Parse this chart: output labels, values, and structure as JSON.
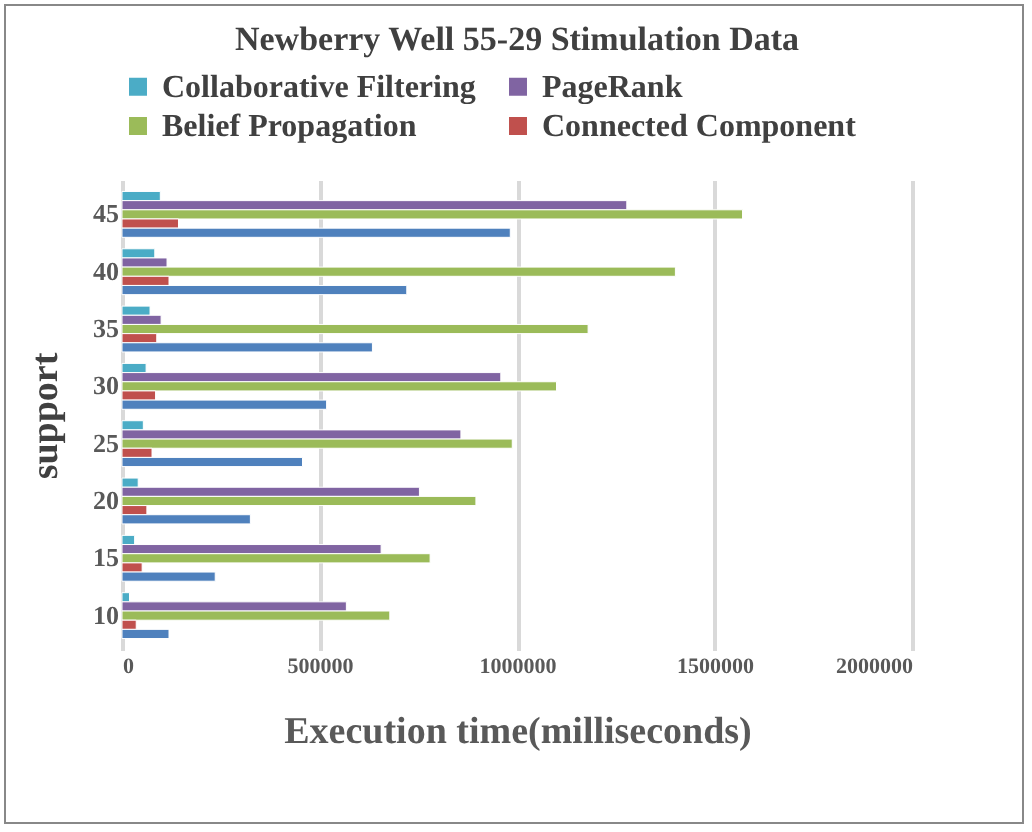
{
  "chart_data": {
    "type": "bar",
    "orientation": "horizontal",
    "title": "Newberry Well 55-29 Stimulation Data",
    "xlabel": "Execution time(milliseconds)",
    "ylabel": "support",
    "categories": [
      "45",
      "40",
      "35",
      "30",
      "25",
      "20",
      "15",
      "10"
    ],
    "series": [
      {
        "name": "Collaborative Filtering",
        "color": "#4bacc6",
        "values": [
          97000,
          83000,
          71000,
          61000,
          54000,
          41000,
          32000,
          19000
        ]
      },
      {
        "name": "PageRank",
        "color": "#8064a2",
        "values": [
          1278000,
          114000,
          99000,
          959000,
          858000,
          753000,
          656000,
          568000
        ]
      },
      {
        "name": "Belief Propagation",
        "color": "#9bbb59",
        "values": [
          1571000,
          1401000,
          1180000,
          1100000,
          988000,
          896000,
          780000,
          678000
        ]
      },
      {
        "name": "Connected Component",
        "color": "#c0504d",
        "values": [
          143000,
          119000,
          88000,
          85000,
          76000,
          63000,
          51000,
          36000
        ]
      },
      {
        "color": "#4f81bd",
        "values": [
          983000,
          721000,
          634000,
          518000,
          457000,
          325000,
          236000,
          119000
        ]
      }
    ],
    "xlim": [
      0,
      2000000
    ],
    "xticks": [
      0,
      500000,
      1000000,
      1500000,
      2000000
    ],
    "grid": "x",
    "legend": "top"
  }
}
